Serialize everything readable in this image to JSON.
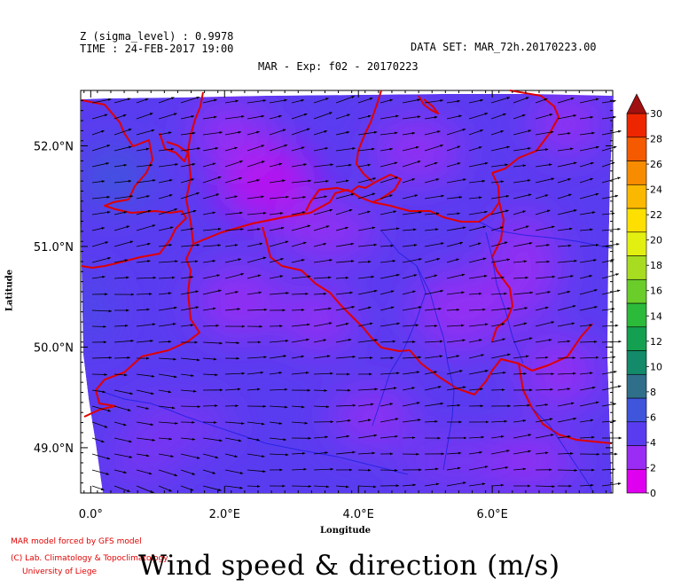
{
  "header": {
    "z_line": "Z (sigma_level) : 0.9978",
    "time_line": "TIME : 24-FEB-2017 19:00",
    "dataset_line": "DATA SET: MAR_72h.20170223.00",
    "plot_title": "MAR - Exp: f02 - 20170223"
  },
  "credits": {
    "line1": "MAR model forced by GFS model",
    "line2": "(C) Lab. Climatology & Topoclimatology",
    "line3": "University of Liege"
  },
  "main_title": "Wind speed & direction (m/s)",
  "chart_data": {
    "type": "heatmap",
    "title": "Wind speed & direction (m/s)",
    "xlabel": "Longitude",
    "ylabel": "Latitude",
    "xlim": [
      -0.15,
      7.8
    ],
    "ylim": [
      48.55,
      52.55
    ],
    "x_ticks": [
      {
        "value": 0,
        "label": "0.0°"
      },
      {
        "value": 2,
        "label": "2.0°E"
      },
      {
        "value": 4,
        "label": "4.0°E"
      },
      {
        "value": 6,
        "label": "6.0°E"
      }
    ],
    "y_ticks": [
      {
        "value": 49,
        "label": "49.0°N"
      },
      {
        "value": 50,
        "label": "50.0°N"
      },
      {
        "value": 51,
        "label": "51.0°N"
      },
      {
        "value": 52,
        "label": "52.0°N"
      }
    ],
    "colorbar": {
      "min": 0,
      "max": 30,
      "step": 2,
      "labels": [
        "0",
        "2",
        "4",
        "6",
        "8",
        "10",
        "12",
        "14",
        "16",
        "18",
        "20",
        "22",
        "24",
        "26",
        "28",
        "30"
      ],
      "colors": [
        "#e000f0",
        "#9a2cf4",
        "#5a3cf0",
        "#3f55dc",
        "#2f6f8a",
        "#138a6a",
        "#13a050",
        "#2cba3a",
        "#6acd2a",
        "#a7dc20",
        "#e3ef10",
        "#fde000",
        "#fbb800",
        "#f88c00",
        "#f55a00",
        "#ee2600"
      ],
      "extend_color": "#a01010"
    },
    "wind_field": {
      "description_direction": "predominantly westerly, veering to north-westerly in south-west",
      "speed_range": [
        1,
        5
      ],
      "speed_units": "m/s"
    }
  },
  "colors": {
    "field_base": "#5a3cf0",
    "field_low": "#9a2cf4",
    "coast_border": "#e00000",
    "rivers": "#2020e0",
    "arrows": "#000000"
  }
}
